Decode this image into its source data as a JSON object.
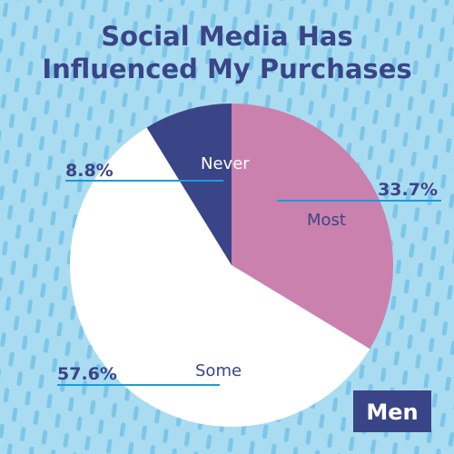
{
  "colors": {
    "background": "#a9dcf1",
    "stripe": "#7ec6e8",
    "title": "#3a4587",
    "leader_line": "#1d9ad6",
    "badge_bg": "#3a4587"
  },
  "badge": {
    "label": "Men"
  },
  "chart_data": {
    "type": "pie",
    "title": "Social Media Has Influenced My Purchases",
    "title_lines": [
      "Social Media Has",
      "Influenced My Purchases"
    ],
    "unit": "%",
    "start": "12 o'clock, clockwise",
    "slices": [
      {
        "label": "Most",
        "value": 33.7,
        "value_label": "33.7%",
        "color": "#cb81ad",
        "label_color": "#3a4587"
      },
      {
        "label": "Some",
        "value": 57.6,
        "value_label": "57.6%",
        "color": "#ffffff",
        "label_color": "#3a4587"
      },
      {
        "label": "Never",
        "value": 8.8,
        "value_label": "8.8%",
        "color": "#3a4587",
        "label_color": "#ffffff"
      }
    ],
    "grid": false,
    "legend": "none"
  }
}
